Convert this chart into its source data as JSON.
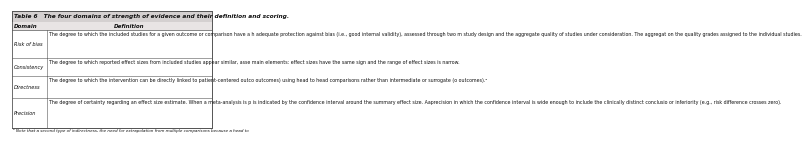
{
  "title": "Table 6   The four domains of strength of evidence and their definition and scoring.",
  "col_headers": [
    "Domain",
    "Definition"
  ],
  "rows": [
    {
      "domain": "Risk of bias",
      "definition": "The degree to which the included studies for a given outcome or comparison have a h adequate protection against bias (i.e., good internal validity), assessed through two m study design and the aggregate quality of studies under consideration. The aggregat on the quality grades assigned to the individual studies."
    },
    {
      "domain": "Consistency",
      "definition": "The degree to which reported effect sizes from included studies appear similar, asse main elements: effect sizes have the same sign and the range of effect sizes is narrow."
    },
    {
      "domain": "Directness",
      "definition": "The degree to which the intervention can be directly linked to patient-centered outco outcomes) using head to head comparisons rather than intermediate or surrogate (o outcomes).ᵃ"
    },
    {
      "domain": "Precision",
      "definition": "The degree of certainty regarding an effect size estimate. When a meta-analysis is p is indicated by the confidence interval around the summary effect size. Aaprecision in which the confidence interval is wide enough to include the clinically distinct conclusio or inferiority (e.g., risk difference crosses zero)."
    }
  ],
  "footnote": "ᵃ Note that a second type of indirectness, the need for extrapolation from multiple comparisons because a head to",
  "bg_title": "#d4d0d0",
  "bg_header": "#e8e4e4",
  "bg_row": "#ffffff",
  "border_color": "#555555",
  "text_color": "#111111",
  "title_fontsize": 4.2,
  "header_fontsize": 4.0,
  "domain_fontsize": 3.6,
  "def_fontsize": 3.4,
  "footnote_fontsize": 3.0,
  "col_split": 0.175
}
